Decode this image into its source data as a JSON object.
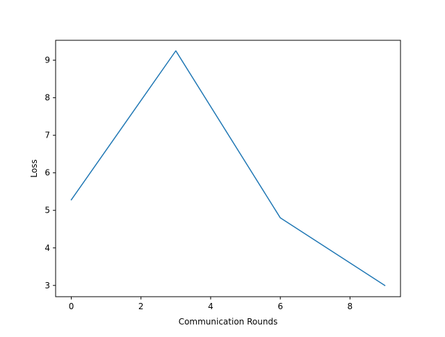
{
  "chart_data": {
    "type": "line",
    "title": "",
    "xlabel": "Communication Rounds",
    "ylabel": "Loss",
    "xlim": [
      -0.45,
      9.45
    ],
    "ylim": [
      2.7,
      9.53
    ],
    "x_ticks": [
      0,
      2,
      4,
      6,
      8
    ],
    "x_tick_labels": [
      "0",
      "2",
      "4",
      "6",
      "8"
    ],
    "y_ticks": [
      3,
      4,
      5,
      6,
      7,
      8,
      9
    ],
    "y_tick_labels": [
      "3",
      "4",
      "5",
      "6",
      "7",
      "8",
      "9"
    ],
    "grid": false,
    "legend": "none",
    "series": [
      {
        "color": "#1f77b4",
        "x": [
          0,
          3,
          6,
          9
        ],
        "y": [
          5.28,
          9.25,
          4.8,
          3.0
        ]
      }
    ]
  }
}
